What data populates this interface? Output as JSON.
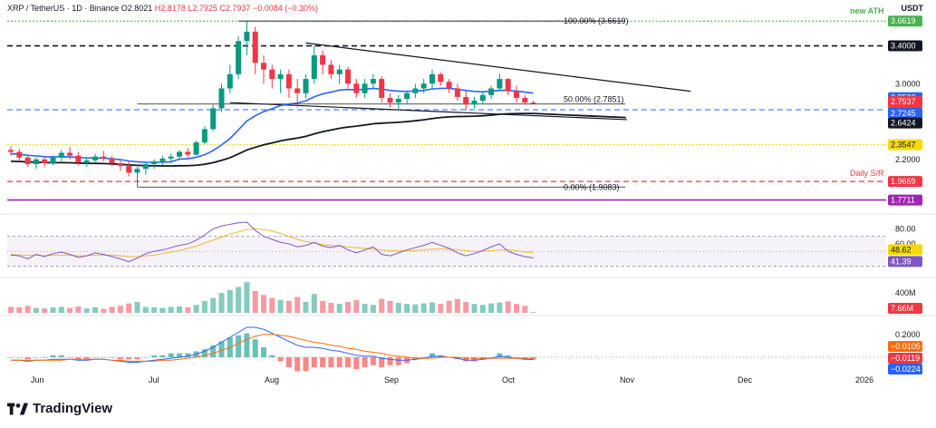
{
  "header": {
    "symbol": "XRP / TetherUS · 1D · Binance",
    "open": "O2.8021",
    "high": "H2.8178",
    "low": "L2.7925",
    "close": "C2.7937",
    "change": "−0.0084 (−0.30%)"
  },
  "currency": "USDT",
  "brand": "TradingView",
  "annotations": {
    "fib100": "100.00% (3.6619)",
    "fib50": "50.00% (2.7851)",
    "fib0": "0.00% (1.9083)",
    "new_ath": "new ATH",
    "daily_sr": "Daily S/R"
  },
  "price_axis": {
    "ticks": [
      "3.0000",
      "2.2000"
    ],
    "tags": [
      {
        "label": "3.6619",
        "color": "#4caf50"
      },
      {
        "label": "3.4000",
        "color": "#131722"
      },
      {
        "label": "2.8522",
        "color": "#2962ff"
      },
      {
        "label": "2.7937",
        "color": "#f23645"
      },
      {
        "label": "21:05:56",
        "color": "#f23645"
      },
      {
        "label": "2.7245",
        "color": "#2962ff"
      },
      {
        "label": "2.6424",
        "color": "#131722"
      },
      {
        "label": "2.3547",
        "color": "#f5d90a"
      },
      {
        "label": "1.9669",
        "color": "#f23645"
      },
      {
        "label": "1.7711",
        "color": "#9c27b0"
      }
    ]
  },
  "rsi_axis": {
    "ticks": [
      "80.00",
      "60.00"
    ],
    "tags": [
      {
        "label": "48.62",
        "color": "#f5d90a"
      },
      {
        "label": "41.39",
        "color": "#7e57c2"
      }
    ]
  },
  "volume_axis": {
    "ticks": [
      "400M"
    ],
    "tags": [
      {
        "label": "7.66M",
        "color": "#f23645"
      }
    ]
  },
  "macd_axis": {
    "ticks": [
      "0.2000"
    ],
    "tags": [
      {
        "label": "−0.0105",
        "color": "#ff6d00"
      },
      {
        "label": "−0.0119",
        "color": "#f23645"
      },
      {
        "label": "−0.0224",
        "color": "#2962ff"
      }
    ]
  },
  "time_axis": [
    "Jun",
    "Jul",
    "Aug",
    "Sep",
    "Oct",
    "Nov",
    "Dec",
    "2026"
  ],
  "chart_data": {
    "type": "candlestick",
    "colors": {
      "up": "#089981",
      "down": "#f23645",
      "ema_fast": "#2962ff",
      "ema_slow": "#131722"
    },
    "ohlc": [
      [
        2.3,
        2.34,
        2.24,
        2.28
      ],
      [
        2.28,
        2.31,
        2.18,
        2.22
      ],
      [
        2.22,
        2.25,
        2.12,
        2.15
      ],
      [
        2.15,
        2.22,
        2.1,
        2.2
      ],
      [
        2.2,
        2.24,
        2.12,
        2.16
      ],
      [
        2.16,
        2.24,
        2.14,
        2.22
      ],
      [
        2.22,
        2.3,
        2.18,
        2.27
      ],
      [
        2.27,
        2.33,
        2.2,
        2.24
      ],
      [
        2.24,
        2.28,
        2.14,
        2.17
      ],
      [
        2.17,
        2.22,
        2.12,
        2.19
      ],
      [
        2.19,
        2.26,
        2.16,
        2.23
      ],
      [
        2.23,
        2.29,
        2.18,
        2.21
      ],
      [
        2.21,
        2.24,
        2.13,
        2.16
      ],
      [
        2.16,
        2.2,
        2.08,
        2.13
      ],
      [
        2.13,
        2.18,
        2.02,
        2.06
      ],
      [
        2.06,
        2.12,
        1.91,
        2.1
      ],
      [
        2.1,
        2.16,
        2.04,
        2.15
      ],
      [
        2.15,
        2.2,
        2.1,
        2.18
      ],
      [
        2.18,
        2.24,
        2.14,
        2.21
      ],
      [
        2.21,
        2.26,
        2.16,
        2.23
      ],
      [
        2.23,
        2.3,
        2.2,
        2.28
      ],
      [
        2.28,
        2.32,
        2.22,
        2.25
      ],
      [
        2.25,
        2.4,
        2.24,
        2.38
      ],
      [
        2.38,
        2.55,
        2.36,
        2.52
      ],
      [
        2.52,
        2.78,
        2.5,
        2.74
      ],
      [
        2.74,
        3.0,
        2.7,
        2.95
      ],
      [
        2.95,
        3.2,
        2.9,
        3.1
      ],
      [
        3.1,
        3.5,
        3.05,
        3.45
      ],
      [
        3.45,
        3.66,
        3.3,
        3.55
      ],
      [
        3.55,
        3.6,
        3.1,
        3.22
      ],
      [
        3.22,
        3.3,
        3.0,
        3.15
      ],
      [
        3.15,
        3.2,
        2.95,
        3.05
      ],
      [
        3.05,
        3.15,
        2.9,
        3.1
      ],
      [
        3.1,
        3.15,
        2.85,
        2.95
      ],
      [
        2.95,
        3.05,
        2.75,
        2.9
      ],
      [
        2.9,
        3.1,
        2.85,
        3.05
      ],
      [
        3.05,
        3.4,
        3.0,
        3.3
      ],
      [
        3.3,
        3.35,
        3.1,
        3.2
      ],
      [
        3.2,
        3.25,
        3.05,
        3.1
      ],
      [
        3.1,
        3.2,
        3.0,
        3.15
      ],
      [
        3.15,
        3.18,
        2.95,
        3.0
      ],
      [
        3.0,
        3.05,
        2.85,
        2.9
      ],
      [
        2.9,
        3.05,
        2.85,
        3.0
      ],
      [
        3.0,
        3.1,
        2.95,
        3.05
      ],
      [
        3.05,
        3.08,
        2.8,
        2.85
      ],
      [
        2.85,
        2.9,
        2.75,
        2.8
      ],
      [
        2.8,
        2.88,
        2.72,
        2.84
      ],
      [
        2.84,
        2.92,
        2.78,
        2.9
      ],
      [
        2.9,
        3.0,
        2.85,
        2.95
      ],
      [
        2.95,
        3.05,
        2.9,
        3.0
      ],
      [
        3.0,
        3.15,
        2.95,
        3.1
      ],
      [
        3.1,
        3.12,
        2.98,
        3.02
      ],
      [
        3.02,
        3.05,
        2.9,
        2.95
      ],
      [
        2.95,
        3.0,
        2.82,
        2.86
      ],
      [
        2.86,
        2.92,
        2.72,
        2.78
      ],
      [
        2.78,
        2.86,
        2.74,
        2.82
      ],
      [
        2.82,
        2.92,
        2.78,
        2.88
      ],
      [
        2.88,
        2.98,
        2.84,
        2.95
      ],
      [
        2.95,
        3.1,
        2.92,
        3.05
      ],
      [
        3.05,
        3.06,
        2.88,
        2.92
      ],
      [
        2.92,
        2.98,
        2.8,
        2.85
      ],
      [
        2.85,
        2.88,
        2.78,
        2.8
      ],
      [
        2.8,
        2.82,
        2.79,
        2.79
      ]
    ],
    "rsi": [
      45,
      44,
      40,
      46,
      43,
      47,
      49,
      46,
      42,
      44,
      48,
      46,
      43,
      40,
      36,
      41,
      47,
      50,
      52,
      55,
      58,
      60,
      65,
      72,
      80,
      84,
      86,
      88,
      89,
      78,
      70,
      66,
      62,
      60,
      56,
      58,
      62,
      57,
      55,
      58,
      52,
      48,
      52,
      56,
      46,
      44,
      48,
      52,
      55,
      58,
      62,
      58,
      54,
      48,
      44,
      47,
      51,
      56,
      60,
      50,
      46,
      43,
      41.39
    ],
    "rsi_ma": [
      46,
      45,
      45,
      45,
      44,
      45,
      45,
      45,
      44,
      44,
      45,
      45,
      45,
      44,
      43,
      43,
      44,
      45,
      47,
      49,
      51,
      54,
      57,
      61,
      65,
      69,
      73,
      76,
      79,
      80,
      79,
      77,
      74,
      70,
      66,
      63,
      61,
      59,
      58,
      57,
      56,
      55,
      54,
      53,
      52,
      51,
      51,
      51,
      51,
      52,
      53,
      53,
      53,
      52,
      51,
      50,
      50,
      51,
      52,
      52,
      51,
      49,
      48.62
    ],
    "volume": [
      60,
      55,
      70,
      50,
      45,
      55,
      60,
      50,
      65,
      45,
      55,
      40,
      60,
      70,
      95,
      110,
      60,
      55,
      50,
      60,
      65,
      55,
      80,
      120,
      150,
      200,
      230,
      260,
      310,
      220,
      180,
      150,
      130,
      120,
      160,
      110,
      190,
      120,
      100,
      90,
      110,
      130,
      90,
      80,
      140,
      120,
      100,
      90,
      85,
      95,
      105,
      90,
      120,
      140,
      110,
      90,
      80,
      95,
      105,
      115,
      90,
      70,
      7.66
    ],
    "macd": [
      -0.03,
      -0.03,
      -0.04,
      -0.03,
      -0.03,
      -0.02,
      -0.02,
      -0.02,
      -0.03,
      -0.03,
      -0.02,
      -0.02,
      -0.03,
      -0.04,
      -0.05,
      -0.05,
      -0.04,
      -0.03,
      -0.02,
      -0.01,
      0.0,
      0.01,
      0.03,
      0.06,
      0.1,
      0.15,
      0.2,
      0.25,
      0.3,
      0.3,
      0.28,
      0.24,
      0.2,
      0.16,
      0.12,
      0.1,
      0.1,
      0.09,
      0.07,
      0.06,
      0.04,
      0.02,
      0.01,
      0.01,
      -0.01,
      -0.02,
      -0.03,
      -0.03,
      -0.02,
      -0.01,
      0.01,
      0.01,
      0.0,
      -0.01,
      -0.03,
      -0.03,
      -0.02,
      -0.01,
      0.01,
      0.0,
      -0.01,
      -0.02,
      -0.0224
    ],
    "signal": [
      -0.03,
      -0.03,
      -0.03,
      -0.03,
      -0.03,
      -0.03,
      -0.03,
      -0.02,
      -0.02,
      -0.02,
      -0.02,
      -0.02,
      -0.03,
      -0.03,
      -0.04,
      -0.04,
      -0.04,
      -0.04,
      -0.03,
      -0.03,
      -0.02,
      -0.01,
      0.0,
      0.02,
      0.04,
      0.07,
      0.1,
      0.14,
      0.18,
      0.21,
      0.23,
      0.23,
      0.22,
      0.21,
      0.19,
      0.17,
      0.15,
      0.14,
      0.12,
      0.11,
      0.09,
      0.08,
      0.06,
      0.05,
      0.04,
      0.02,
      0.01,
      0.0,
      -0.01,
      -0.01,
      -0.01,
      0.0,
      0.0,
      0.0,
      -0.01,
      -0.01,
      -0.01,
      -0.01,
      -0.01,
      -0.01,
      -0.01,
      -0.01,
      -0.0105
    ]
  }
}
